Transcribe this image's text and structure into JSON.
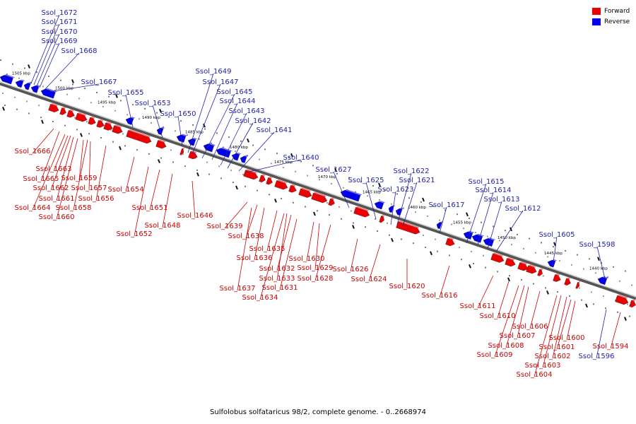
{
  "caption": "Sulfolobus solfataricus 98/2, complete genome. - 0..2668974",
  "legend": [
    {
      "label": "Forward",
      "color": "#ee0000"
    },
    {
      "label": "Reverse",
      "color": "#0000ee"
    }
  ],
  "colors": {
    "forward": "#ee0000",
    "reverse": "#0000ee",
    "backbone": "#888888",
    "label_forward": "#cc0000",
    "label_reverse": "#2222aa"
  },
  "scale": {
    "ticks": [
      "1505 kbp",
      "1500 kbp",
      "1495 kbp",
      "1490 kbp",
      "1485 kbp",
      "1480 kbp",
      "1475 kbp",
      "1470 kbp",
      "1465 kbp",
      "1460 kbp",
      "1455 kbp",
      "1450 kbp",
      "1445 kbp",
      "1440 kbp"
    ]
  },
  "genes_forward": [
    "Ssol_1666",
    "Ssol_1665",
    "Ssol_1664",
    "Ssol_1663",
    "Ssol_1662",
    "Ssol_1661",
    "Ssol_1660",
    "Ssol_1659",
    "Ssol_1658",
    "Ssol_1657",
    "Ssol_1656",
    "Ssol_1654",
    "Ssol_1652",
    "Ssol_1651",
    "Ssol_1648",
    "Ssol_1646",
    "Ssol_1639",
    "Ssol_1638",
    "Ssol_1637",
    "Ssol_1636",
    "Ssol_1635",
    "Ssol_1634",
    "Ssol_1633",
    "Ssol_1632",
    "Ssol_1631",
    "Ssol_1630",
    "Ssol_1629",
    "Ssol_1628",
    "Ssol_1626",
    "Ssol_1624",
    "Ssol_1620",
    "Ssol_1616",
    "Ssol_1611",
    "Ssol_1610",
    "Ssol_1609",
    "Ssol_1608",
    "Ssol_1607",
    "Ssol_1606",
    "Ssol_1604",
    "Ssol_1603",
    "Ssol_1602",
    "Ssol_1601",
    "Ssol_1600",
    "Ssol_1594"
  ],
  "genes_reverse": [
    "Ssol_1672",
    "Ssol_1671",
    "Ssol_1670",
    "Ssol_1669",
    "Ssol_1668",
    "Ssol_1667",
    "Ssol_1655",
    "Ssol_1653",
    "Ssol_1650",
    "Ssol_1649",
    "Ssol_1647",
    "Ssol_1645",
    "Ssol_1644",
    "Ssol_1643",
    "Ssol_1642",
    "Ssol_1641",
    "Ssol_1640",
    "Ssol_1627",
    "Ssol_1625",
    "Ssol_1623",
    "Ssol_1622",
    "Ssol_1621",
    "Ssol_1617",
    "Ssol_1615",
    "Ssol_1614",
    "Ssol_1613",
    "Ssol_1612",
    "Ssol_1605",
    "Ssol_1598",
    "Ssol_1596"
  ]
}
